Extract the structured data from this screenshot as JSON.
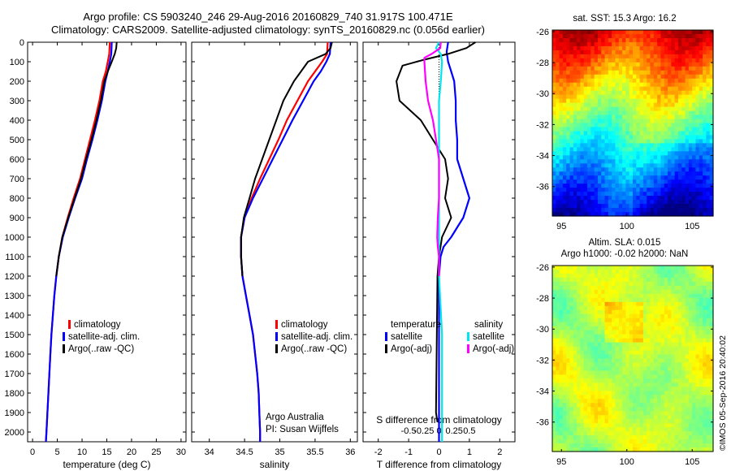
{
  "header": {
    "line1": "Argo profile: CS 5903240_246 29-Aug-2016 20160829_740 31.917S 100.471E",
    "line2": "Climatology: CARS2009. Satellite-adjusted climatology: synTS_20160829.nc (0.056d earlier)"
  },
  "colors": {
    "climatology": "#ff0000",
    "satellite": "#0000ff",
    "argo": "#000000",
    "sal_satellite": "#00e5ee",
    "sal_argo": "#ff00ff"
  },
  "depth_axis": {
    "range": [
      0,
      2050
    ],
    "ticks": [
      0,
      100,
      200,
      300,
      400,
      500,
      600,
      700,
      800,
      900,
      1000,
      1100,
      1200,
      1300,
      1400,
      1500,
      1600,
      1700,
      1800,
      1900,
      2000
    ]
  },
  "legend_profile": {
    "climatology": "climatology",
    "satellite": "satellite-adj. clim.",
    "argo": "Argo(..raw -QC)"
  },
  "legend_diff": {
    "temp_header": "temperature",
    "sal_header": "salinity",
    "temp_satellite": "satellite",
    "temp_argo": "Argo(-adj)",
    "sal_satellite": "satellite",
    "sal_argo": "Argo(-adj)"
  },
  "credits": {
    "line1": "Argo Australia",
    "line2": "PI: Susan Wijffels",
    "imos": "©IMOS 05-Sep-2016 20:40:02"
  },
  "maps": {
    "sst_title": "sat. SST: 15.3  Argo: 16.2",
    "sla_title1": "Altim. SLA: 0.015",
    "sla_title2": "Argo h1000: -0.02 h2000: NaN",
    "lat_ticks": [
      "-26",
      "-28",
      "-30",
      "-32",
      "-34",
      "-36"
    ],
    "lon_ticks": [
      "95",
      "100",
      "105"
    ]
  },
  "chart_data": [
    {
      "type": "line",
      "xlabel": "temperature (deg C)",
      "ylabel": "",
      "xlim": [
        -1,
        31
      ],
      "ylim": [
        2050,
        0
      ],
      "xticks": [
        "0",
        "5",
        "10",
        "15",
        "20",
        "25",
        "30"
      ],
      "series": [
        {
          "name": "climatology",
          "points": [
            [
              15.6,
              0
            ],
            [
              15.5,
              60
            ],
            [
              15.2,
              100
            ],
            [
              14.8,
              150
            ],
            [
              14.2,
              200
            ],
            [
              13.5,
              300
            ],
            [
              12.6,
              400
            ],
            [
              11.6,
              500
            ],
            [
              10.6,
              600
            ],
            [
              9.6,
              700
            ],
            [
              8.3,
              800
            ],
            [
              7.1,
              900
            ],
            [
              6.0,
              1000
            ],
            [
              5.3,
              1100
            ],
            [
              4.8,
              1200
            ],
            [
              4.4,
              1300
            ],
            [
              4.1,
              1400
            ],
            [
              3.8,
              1500
            ],
            [
              3.6,
              1600
            ],
            [
              3.4,
              1700
            ],
            [
              3.2,
              1800
            ],
            [
              3.0,
              1900
            ],
            [
              2.8,
              2000
            ],
            [
              2.7,
              2050
            ]
          ]
        },
        {
          "name": "satellite-adj. clim.",
          "points": [
            [
              16.0,
              0
            ],
            [
              15.9,
              60
            ],
            [
              15.6,
              100
            ],
            [
              15.2,
              150
            ],
            [
              14.7,
              200
            ],
            [
              14.0,
              300
            ],
            [
              13.1,
              400
            ],
            [
              12.1,
              500
            ],
            [
              11.0,
              600
            ],
            [
              10.0,
              700
            ],
            [
              8.6,
              800
            ],
            [
              7.3,
              900
            ],
            [
              6.1,
              1000
            ],
            [
              5.3,
              1100
            ],
            [
              4.8,
              1200
            ],
            [
              4.4,
              1300
            ],
            [
              4.1,
              1400
            ],
            [
              3.8,
              1500
            ],
            [
              3.6,
              1600
            ],
            [
              3.4,
              1700
            ],
            [
              3.2,
              1800
            ],
            [
              3.0,
              1900
            ],
            [
              2.8,
              2000
            ],
            [
              2.7,
              2050
            ]
          ]
        },
        {
          "name": "Argo(..raw -QC)",
          "points": [
            [
              17.0,
              0
            ],
            [
              16.9,
              30
            ],
            [
              16.6,
              60
            ],
            [
              16.0,
              100
            ],
            [
              15.2,
              150
            ],
            [
              14.5,
              200
            ],
            [
              13.8,
              300
            ],
            [
              12.9,
              400
            ],
            [
              11.9,
              500
            ],
            [
              10.8,
              600
            ],
            [
              9.8,
              700
            ],
            [
              8.5,
              800
            ],
            [
              7.2,
              900
            ],
            [
              6.0,
              1000
            ],
            [
              5.3,
              1100
            ],
            [
              4.8,
              1200
            ]
          ]
        }
      ]
    },
    {
      "type": "line",
      "xlabel": "salinity",
      "ylabel": "",
      "xlim": [
        33.75,
        36.1
      ],
      "ylim": [
        2050,
        0
      ],
      "xticks": [
        "34",
        "34.5",
        "35",
        "35.5",
        "36"
      ],
      "series": [
        {
          "name": "climatology",
          "points": [
            [
              35.68,
              0
            ],
            [
              35.67,
              60
            ],
            [
              35.6,
              100
            ],
            [
              35.5,
              150
            ],
            [
              35.4,
              200
            ],
            [
              35.25,
              300
            ],
            [
              35.1,
              400
            ],
            [
              34.98,
              500
            ],
            [
              34.85,
              600
            ],
            [
              34.72,
              700
            ],
            [
              34.6,
              800
            ],
            [
              34.5,
              900
            ],
            [
              34.45,
              1000
            ],
            [
              34.45,
              1100
            ],
            [
              34.47,
              1200
            ],
            [
              34.52,
              1300
            ],
            [
              34.57,
              1400
            ],
            [
              34.62,
              1500
            ],
            [
              34.65,
              1600
            ],
            [
              34.68,
              1700
            ],
            [
              34.7,
              1800
            ],
            [
              34.71,
              1900
            ],
            [
              34.72,
              2000
            ],
            [
              34.72,
              2050
            ]
          ]
        },
        {
          "name": "satellite-adj. clim.",
          "points": [
            [
              35.72,
              0
            ],
            [
              35.71,
              60
            ],
            [
              35.66,
              100
            ],
            [
              35.58,
              150
            ],
            [
              35.48,
              200
            ],
            [
              35.33,
              300
            ],
            [
              35.18,
              400
            ],
            [
              35.04,
              500
            ],
            [
              34.9,
              600
            ],
            [
              34.76,
              700
            ],
            [
              34.62,
              800
            ],
            [
              34.5,
              900
            ],
            [
              34.45,
              1000
            ],
            [
              34.45,
              1100
            ],
            [
              34.47,
              1200
            ],
            [
              34.52,
              1300
            ],
            [
              34.57,
              1400
            ],
            [
              34.62,
              1500
            ],
            [
              34.65,
              1600
            ],
            [
              34.68,
              1700
            ],
            [
              34.7,
              1800
            ],
            [
              34.71,
              1900
            ],
            [
              34.72,
              2000
            ],
            [
              34.72,
              2050
            ]
          ]
        },
        {
          "name": "Argo(..raw -QC)",
          "points": [
            [
              35.74,
              0
            ],
            [
              35.72,
              30
            ],
            [
              35.65,
              60
            ],
            [
              35.4,
              100
            ],
            [
              35.3,
              150
            ],
            [
              35.2,
              200
            ],
            [
              35.05,
              300
            ],
            [
              34.95,
              400
            ],
            [
              34.85,
              500
            ],
            [
              34.75,
              600
            ],
            [
              34.65,
              700
            ],
            [
              34.57,
              800
            ],
            [
              34.49,
              900
            ],
            [
              34.45,
              1000
            ],
            [
              34.45,
              1100
            ],
            [
              34.47,
              1200
            ]
          ]
        }
      ]
    },
    {
      "type": "line",
      "xlabel": "T difference from climatology",
      "secondary_xlabel": "S difference from climatology",
      "xlim": [
        -2.5,
        2.5
      ],
      "ylim": [
        2050,
        0
      ],
      "xticks": [
        "-2",
        "-1",
        "0",
        "1",
        "2"
      ],
      "secondary_xticks": [
        "-0.5",
        "-0.25",
        "0",
        "0.25",
        "0.5"
      ],
      "series": [
        {
          "name": "temperature satellite",
          "points": [
            [
              0.3,
              0
            ],
            [
              0.25,
              50
            ],
            [
              0.3,
              100
            ],
            [
              0.4,
              150
            ],
            [
              0.5,
              200
            ],
            [
              0.55,
              300
            ],
            [
              0.55,
              400
            ],
            [
              0.6,
              500
            ],
            [
              0.6,
              600
            ],
            [
              0.8,
              700
            ],
            [
              1.0,
              800
            ],
            [
              0.8,
              900
            ],
            [
              0.6,
              950
            ],
            [
              0.4,
              1000
            ],
            [
              0.15,
              1050
            ],
            [
              0.05,
              1100
            ],
            [
              0.0,
              1200
            ],
            [
              0.0,
              1300
            ],
            [
              0.0,
              1400
            ],
            [
              0.0,
              1500
            ],
            [
              0.0,
              1600
            ],
            [
              0.0,
              1700
            ],
            [
              0.0,
              1800
            ],
            [
              0.0,
              1900
            ],
            [
              0.0,
              2000
            ],
            [
              0.0,
              2050
            ]
          ]
        },
        {
          "name": "temperature Argo(-adj)",
          "points": [
            [
              1.2,
              0
            ],
            [
              0.9,
              30
            ],
            [
              0.3,
              60
            ],
            [
              -0.5,
              90
            ],
            [
              -1.2,
              120
            ],
            [
              -1.4,
              200
            ],
            [
              -1.3,
              300
            ],
            [
              -0.6,
              400
            ],
            [
              -0.2,
              500
            ],
            [
              0.2,
              600
            ],
            [
              0.3,
              700
            ],
            [
              0.2,
              800
            ],
            [
              0.4,
              900
            ],
            [
              0.1,
              1000
            ],
            [
              0.0,
              1100
            ],
            [
              -0.05,
              1200
            ],
            [
              -0.1,
              1900
            ],
            [
              -0.05,
              1950
            ]
          ]
        },
        {
          "name": "salinity satellite",
          "points": [
            [
              0.0,
              0
            ],
            [
              -0.05,
              30
            ],
            [
              0.03,
              60
            ],
            [
              0.05,
              100
            ],
            [
              0.03,
              200
            ],
            [
              0.0,
              300
            ],
            [
              0.0,
              500
            ],
            [
              0.0,
              700
            ],
            [
              0.0,
              900
            ],
            [
              0.0,
              1000
            ],
            [
              0.0,
              1100
            ],
            [
              0.0,
              1200
            ],
            [
              0.05,
              1500
            ],
            [
              0.05,
              1800
            ],
            [
              0.05,
              2050
            ]
          ]
        },
        {
          "name": "salinity Argo(-adj)",
          "points": [
            [
              0.03,
              0
            ],
            [
              0.02,
              30
            ],
            [
              -0.12,
              60
            ],
            [
              -0.24,
              80
            ],
            [
              -0.24,
              100
            ],
            [
              -0.22,
              200
            ],
            [
              -0.18,
              300
            ],
            [
              -0.1,
              400
            ],
            [
              -0.05,
              500
            ],
            [
              0.0,
              600
            ],
            [
              0.0,
              800
            ],
            [
              -0.02,
              900
            ],
            [
              -0.03,
              1000
            ],
            [
              -0.02,
              1050
            ],
            [
              0.0,
              1100
            ],
            [
              0.0,
              1200
            ]
          ]
        }
      ]
    },
    {
      "type": "heatmap",
      "title": "sat. SST: 15.3  Argo: 16.2",
      "xlim": [
        94.3,
        106.6
      ],
      "ylim": [
        -37.9,
        -25.9
      ],
      "xticks": [
        "95",
        "100",
        "105"
      ],
      "yticks": [
        "-26",
        "-28",
        "-30",
        "-32",
        "-34",
        "-36"
      ]
    },
    {
      "type": "heatmap",
      "title": "Altim. SLA: 0.015 / Argo h1000: -0.02 h2000: NaN",
      "xlim": [
        94.3,
        106.6
      ],
      "ylim": [
        -37.9,
        -25.9
      ],
      "xticks": [
        "95",
        "100",
        "105"
      ],
      "yticks": [
        "-26",
        "-28",
        "-30",
        "-32",
        "-34",
        "-36"
      ]
    }
  ]
}
